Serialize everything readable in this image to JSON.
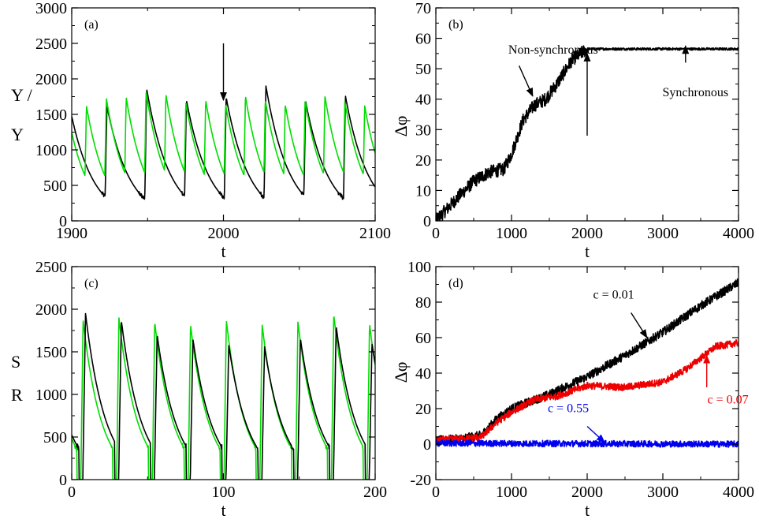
{
  "chart_data": [
    {
      "id": "a",
      "type": "line",
      "panel_label": "(a)",
      "xlabel": "t",
      "ylabel_lines": [
        "Y /",
        "Y"
      ],
      "xlim": [
        1900,
        2100
      ],
      "ylim": [
        0,
        3000
      ],
      "xticks": [
        1900,
        2000,
        2100
      ],
      "yticks": [
        0,
        500,
        1000,
        1500,
        2000,
        2500,
        3000
      ],
      "series": [
        {
          "color": "#000000",
          "kind": "spikes",
          "period": 26.2,
          "phase": 1895.5,
          "rise": 1.5,
          "decay": 15,
          "tail": 45,
          "peaks": [
            1800,
            1620,
            1860,
            1700,
            1740,
            1900,
            1680,
            1760,
            1650
          ]
        },
        {
          "color": "#00dd00",
          "kind": "spikes",
          "period": 13.1,
          "phase": 1908.2,
          "rise": 1.5,
          "decay": 13,
          "tail": 22,
          "peaks": [
            1620,
            1730,
            1740,
            1820,
            1780,
            1670,
            1700,
            1640,
            1760,
            1700,
            1640,
            1700,
            1760,
            1680,
            1620
          ]
        }
      ],
      "annotations": [
        {
          "x": 2000,
          "y": 2500,
          "tx": 2000,
          "ty": 1700,
          "text": ""
        }
      ]
    },
    {
      "id": "b",
      "type": "line",
      "panel_label": "(b)",
      "xlabel": "t",
      "ylabel": "Δφ",
      "xlim": [
        0,
        4000
      ],
      "ylim": [
        0,
        70
      ],
      "xticks": [
        0,
        1000,
        2000,
        3000,
        4000
      ],
      "yticks": [
        0,
        10,
        20,
        30,
        40,
        50,
        60,
        70
      ],
      "series": [
        {
          "color": "#000000",
          "kind": "noisy",
          "noise": 2.2,
          "noise_after": [
            2000,
            0.4
          ],
          "x": [
            0,
            300,
            500,
            700,
            900,
            1000,
            1150,
            1300,
            1450,
            1600,
            1800,
            2000,
            4000
          ],
          "y": [
            0,
            8,
            13,
            16,
            17,
            22,
            33,
            38,
            40,
            45,
            53,
            56.5,
            56.5
          ]
        }
      ],
      "labels": [
        {
          "text": "Non-synchronous",
          "x": 1550,
          "y": 55
        },
        {
          "text": "Synchronous",
          "x": 3430,
          "y": 41
        }
      ],
      "annotations": [
        {
          "x": 1100,
          "y": 51,
          "tx": 1280,
          "ty": 41,
          "text": ""
        },
        {
          "x": 2000,
          "y": 28,
          "tx": 2000,
          "ty": 55,
          "text": ""
        },
        {
          "x": 3300,
          "y": 52,
          "tx": 3300,
          "ty": 57.5,
          "text": ""
        }
      ]
    },
    {
      "id": "c",
      "type": "line",
      "panel_label": "(c)",
      "xlabel": "t",
      "ylabel_lines": [
        "S",
        "R"
      ],
      "xlim": [
        0,
        200
      ],
      "ylim": [
        0,
        2500
      ],
      "xticks": [
        0,
        100,
        200
      ],
      "yticks": [
        0,
        500,
        1000,
        1500,
        2000,
        2500
      ],
      "series": [
        {
          "color": "#00dd00",
          "kind": "spikes",
          "period": 23.6,
          "phase": 6.0,
          "rise": 1.5,
          "decay": 12,
          "tail": 21,
          "peaks": [
            1870,
            1900,
            1850,
            1820,
            1870,
            1820,
            1850,
            1940,
            1830
          ]
        },
        {
          "color": "#000000",
          "kind": "spikes",
          "period": 23.6,
          "phase": 7.3,
          "rise": 1.8,
          "decay": 13,
          "tail": 21,
          "peaks": [
            1950,
            1870,
            1700,
            1650,
            1580,
            1560,
            1660,
            1800,
            1600
          ]
        }
      ]
    },
    {
      "id": "d",
      "type": "line",
      "panel_label": "(d)",
      "xlabel": "t",
      "ylabel": "Δφ",
      "xlim": [
        0,
        4000
      ],
      "ylim": [
        -20,
        100
      ],
      "xticks": [
        0,
        1000,
        2000,
        3000,
        4000
      ],
      "yticks": [
        -20,
        0,
        20,
        40,
        60,
        80,
        100
      ],
      "series": [
        {
          "name": "c = 0.01",
          "color": "#000000",
          "kind": "noisy",
          "noise": 2.5,
          "x": [
            0,
            300,
            600,
            800,
            1000,
            1500,
            2000,
            2500,
            3000,
            3500,
            4000
          ],
          "y": [
            2,
            3,
            5,
            14,
            20,
            28,
            38,
            50,
            63,
            78,
            91
          ]
        },
        {
          "name": "c = 0.07",
          "color": "#ee0000",
          "kind": "noisy",
          "noise": 2.0,
          "x": [
            0,
            300,
            600,
            800,
            1000,
            1300,
            1600,
            2000,
            2500,
            3000,
            3300,
            3700,
            4000
          ],
          "y": [
            2,
            3,
            4,
            12,
            18,
            25,
            27,
            33,
            32,
            35,
            42,
            55,
            57
          ]
        },
        {
          "name": "c = 0.55",
          "color": "#0000ee",
          "kind": "noisy",
          "noise": 1.8,
          "x": [
            0,
            4000
          ],
          "y": [
            0.5,
            0
          ]
        }
      ],
      "labels": [
        {
          "text": "c = 0.01",
          "x": 2350,
          "y": 82,
          "color": "#000000"
        },
        {
          "text": "c = 0.07",
          "x": 3860,
          "y": 23,
          "color": "#ee0000"
        },
        {
          "text": "c = 0.55",
          "x": 1750,
          "y": 18,
          "color": "#0000ee"
        }
      ],
      "annotations": [
        {
          "x": 2580,
          "y": 74,
          "tx": 2790,
          "ty": 60,
          "text": "",
          "color": "#000000"
        },
        {
          "x": 3580,
          "y": 32,
          "tx": 3580,
          "ty": 50,
          "text": "",
          "color": "#ee0000"
        },
        {
          "x": 2000,
          "y": 10,
          "tx": 2230,
          "ty": 1,
          "text": "",
          "color": "#0000ee"
        }
      ]
    }
  ]
}
